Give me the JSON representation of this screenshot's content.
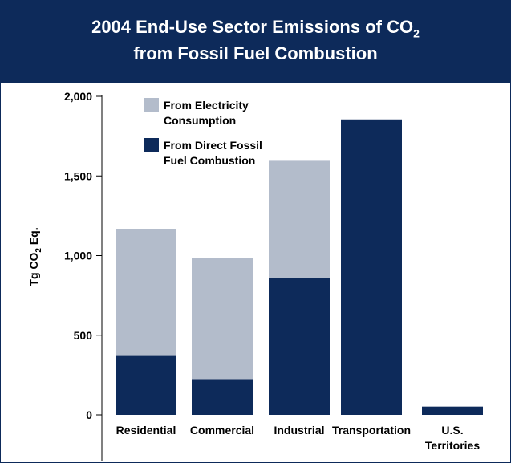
{
  "colors": {
    "frame": "#0d2a5a",
    "title_background": "#0d2a5a",
    "title_text": "#ffffff",
    "electricity": "#b3bccb",
    "direct": "#0d2a5a",
    "axis": "#000000"
  },
  "chart_data": {
    "type": "bar",
    "stacked": true,
    "title_line1": "2004 End-Use Sector Emissions of CO",
    "title_line1_subscript": "2",
    "title_line2": "from Fossil Fuel Combustion",
    "ylabel": "Tg CO",
    "ylabel_subscript": "2",
    "ylabel_suffix": " Eq.",
    "xlabel": "",
    "ylim": [
      0,
      2000
    ],
    "yticks": [
      0,
      500,
      1000,
      1500,
      2000
    ],
    "ytick_labels": [
      "0",
      "500",
      "1,000",
      "1,500",
      "2,000"
    ],
    "categories": [
      [
        "Residential"
      ],
      [
        "Commercial"
      ],
      [
        "Industrial"
      ],
      [
        "Transportation"
      ],
      [
        "U.S.",
        "Territories"
      ]
    ],
    "series": [
      {
        "name": [
          "From Direct Fossil",
          "Fuel Combustion"
        ],
        "color_key": "direct",
        "values": [
          370,
          225,
          860,
          1855,
          52
        ]
      },
      {
        "name": [
          "From Electricity",
          "Consumption"
        ],
        "color_key": "electricity",
        "values": [
          795,
          760,
          735,
          0,
          0
        ]
      }
    ],
    "legend_position": "top-left",
    "grid": false
  }
}
